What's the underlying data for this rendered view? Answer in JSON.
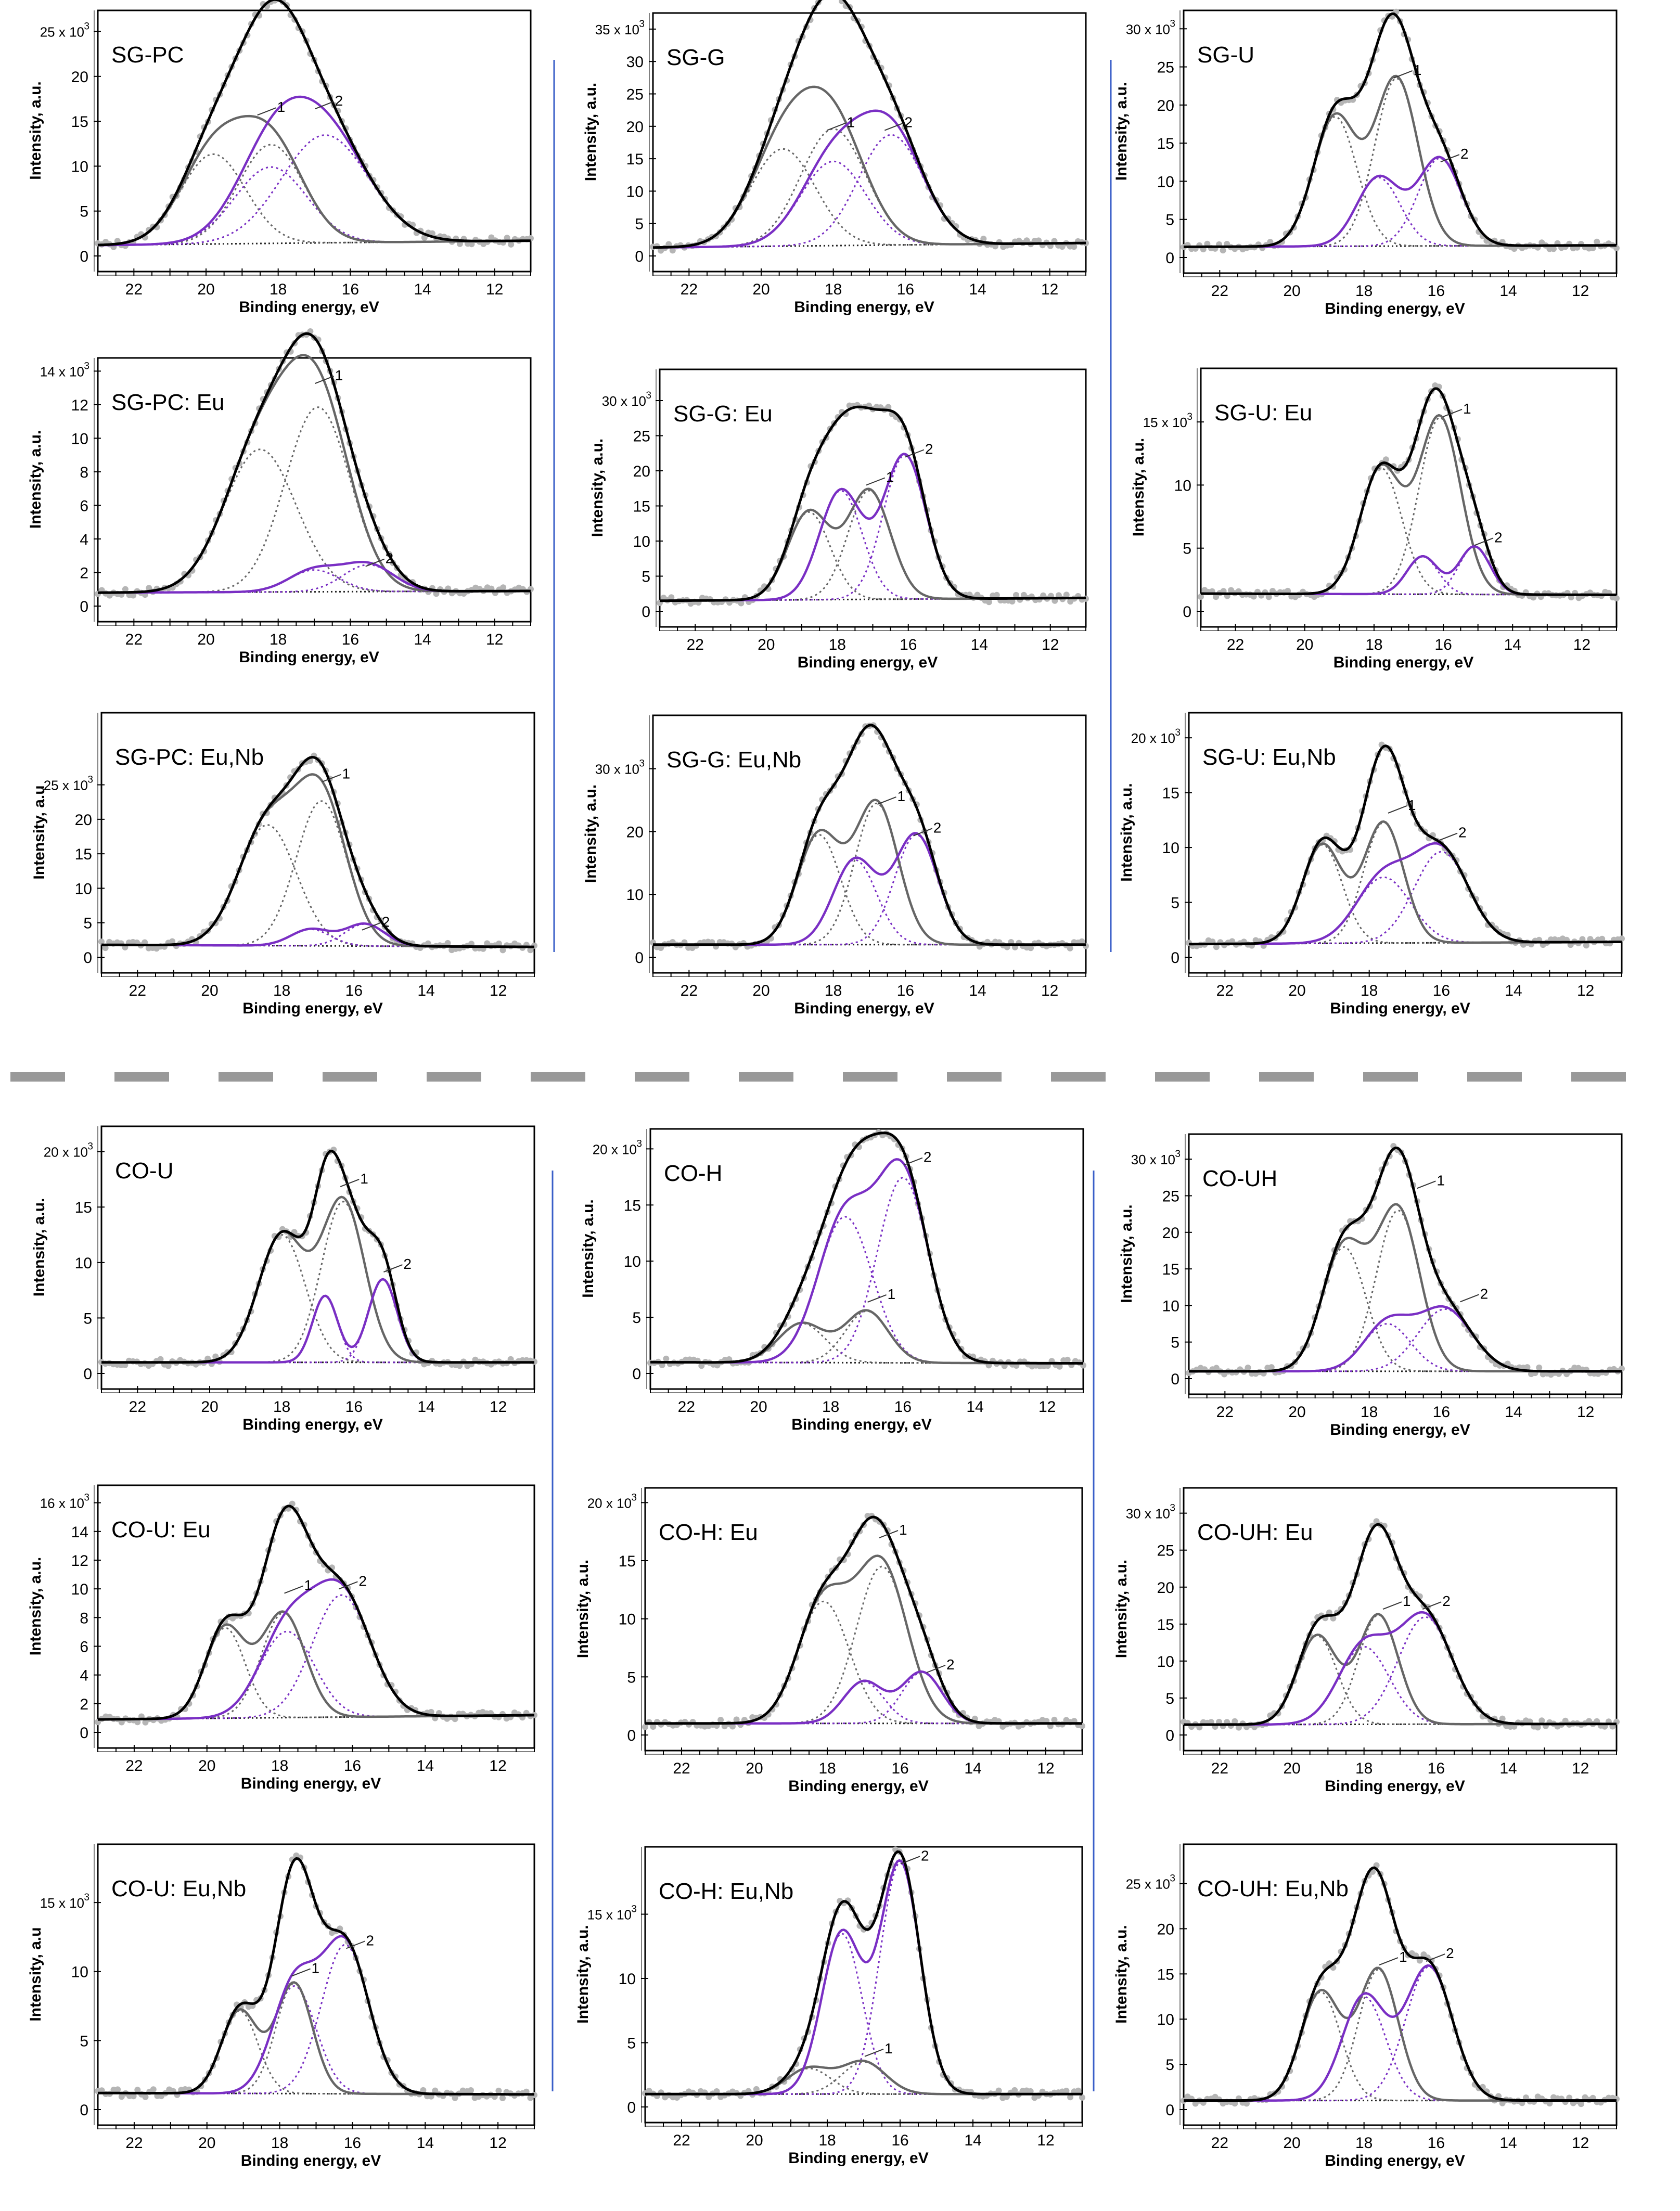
{
  "figure": {
    "colors": {
      "frame": "#000000",
      "envelope": "#000000",
      "peak1": "#666666",
      "peak2": "#7a2fc4",
      "raw": "#b5b5b5",
      "separator": "#999999",
      "divider": "#3a5fc8"
    },
    "shared": {
      "xlabel": "Binding energy, eV",
      "ylabel": "Intensity, a.u.",
      "ylabel_alt": "Intensity, a.u",
      "x_ticks": [
        "22",
        "20",
        "18",
        "16",
        "14",
        "12"
      ],
      "xlim": [
        23,
        11
      ],
      "peak_labels": [
        "1",
        "2"
      ]
    }
  },
  "chart_data": [
    {
      "type": "line",
      "title": "SG-PC",
      "ylabel": "Intensity, a.u.",
      "exp": "25 x 10",
      "ymax": 27,
      "yticks": [
        0,
        5,
        10,
        15,
        20,
        25
      ],
      "ytick_labels": [
        "0",
        "5",
        "10",
        "15",
        "20"
      ],
      "bg": [
        1.2,
        1.7
      ],
      "p1": [
        [
          19.8,
          10,
          0.9
        ],
        [
          18.2,
          11,
          0.9
        ]
      ],
      "p2": [
        [
          18.2,
          8.5,
          1.0
        ],
        [
          16.7,
          12,
          1.2
        ]
      ],
      "lab1": [
        18.0,
        16.5
      ],
      "lab2": [
        16.4,
        17.2
      ]
    },
    {
      "type": "line",
      "title": "SG-G",
      "ylabel": "Intensity, a.u.",
      "exp": "35 x 10",
      "ymax": 37,
      "yticks": [
        0,
        5,
        10,
        15,
        20,
        25,
        30,
        35
      ],
      "ytick_labels": [
        "0",
        "5",
        "10",
        "15",
        "20",
        "25",
        "30"
      ],
      "bg": [
        1.3,
        2.0
      ],
      "p1": [
        [
          19.4,
          15,
          0.9
        ],
        [
          18.0,
          18,
          0.9
        ]
      ],
      "p2": [
        [
          18.0,
          13,
          0.9
        ],
        [
          16.4,
          17,
          0.9
        ]
      ],
      "lab1": [
        17.6,
        20.5
      ],
      "lab2": [
        16.0,
        20.5
      ]
    },
    {
      "type": "line",
      "title": "SG-U",
      "ylabel": "Intensity, a.u.",
      "exp": "30 x 10",
      "ymax": 32,
      "yticks": [
        0,
        5,
        10,
        15,
        20,
        25,
        30
      ],
      "ytick_labels": [
        "0",
        "5",
        "10",
        "15",
        "20",
        "25"
      ],
      "bg": [
        1.4,
        1.6
      ],
      "p1": [
        [
          18.8,
          17,
          0.6
        ],
        [
          17.1,
          22,
          0.6
        ]
      ],
      "p2": [
        [
          17.6,
          9,
          0.6
        ],
        [
          15.9,
          11.5,
          0.6
        ]
      ],
      "lab1": [
        16.6,
        24.5
      ],
      "lab2": [
        15.3,
        13.5
      ]
    },
    {
      "type": "line",
      "title": "SG-PC: Eu",
      "ylabel": "Intensity, a.u.",
      "exp": "14 x 10",
      "ymax": 14.6,
      "yticks": [
        0,
        2,
        4,
        6,
        8,
        10,
        12,
        14
      ],
      "ytick_labels": [
        "0",
        "2",
        "4",
        "6",
        "8",
        "10",
        "12"
      ],
      "bg": [
        0.8,
        0.9
      ],
      "p1": [
        [
          18.5,
          8.5,
          1.0
        ],
        [
          16.9,
          11,
          0.9
        ]
      ],
      "p2": [
        [
          17.0,
          1.3,
          0.7
        ],
        [
          15.5,
          1.6,
          0.7
        ]
      ],
      "lab1": [
        16.4,
        13.7
      ],
      "lab2": [
        15.0,
        2.8
      ]
    },
    {
      "type": "line",
      "title": "SG-G: Eu",
      "ylabel": "Intensity, a.u.",
      "exp": "30 x 10",
      "ymax": 34,
      "yticks": [
        0,
        5,
        10,
        15,
        20,
        25,
        30
      ],
      "ytick_labels": [
        "0",
        "5",
        "10",
        "15",
        "20",
        "25"
      ],
      "bg": [
        1.5,
        1.9
      ],
      "p1": [
        [
          18.8,
          12.5,
          0.6
        ],
        [
          17.1,
          15.5,
          0.6
        ]
      ],
      "p2": [
        [
          17.9,
          15.5,
          0.6
        ],
        [
          16.1,
          20.5,
          0.6
        ]
      ],
      "lab1": [
        16.6,
        19.0
      ],
      "lab2": [
        15.5,
        23.0
      ]
    },
    {
      "type": "line",
      "title": "SG-U: Eu",
      "ylabel": "Intensity, a.u.",
      "exp": "15 x 10",
      "ymax": 19,
      "yticks": [
        0,
        5,
        10,
        15
      ],
      "ytick_labels": [
        "0",
        "5",
        "10"
      ],
      "bg": [
        1.4,
        1.3
      ],
      "p1": [
        [
          17.8,
          10,
          0.6
        ],
        [
          16.1,
          14,
          0.6
        ]
      ],
      "p2": [
        [
          16.6,
          3,
          0.45
        ],
        [
          15.1,
          3.8,
          0.45
        ]
      ],
      "lab1": [
        15.4,
        16.0
      ],
      "lab2": [
        14.5,
        5.8
      ]
    },
    {
      "type": "line",
      "title": "SG-PC: Eu,Nb",
      "ylabel": "Intensity, a.u",
      "exp": "25 x 10",
      "ymax": 35,
      "yticks": [
        0,
        5,
        10,
        15,
        20,
        25
      ],
      "ytick_labels": [
        "0",
        "5",
        "10",
        "15",
        "20"
      ],
      "bg": [
        1.8,
        1.5
      ],
      "p1": [
        [
          18.4,
          17.5,
          0.8
        ],
        [
          16.9,
          21,
          0.7
        ]
      ],
      "p2": [
        [
          17.2,
          2.4,
          0.55
        ],
        [
          15.7,
          3.2,
          0.55
        ]
      ],
      "lab1": [
        16.3,
        26.5
      ],
      "lab2": [
        15.2,
        5.0
      ]
    },
    {
      "type": "line",
      "title": "SG-G: Eu,Nb",
      "ylabel": "Intensity, a.u.",
      "exp": "30 x 10",
      "ymax": 38,
      "yticks": [
        0,
        10,
        20,
        30
      ],
      "ytick_labels": [
        "0",
        "10",
        "20"
      ],
      "bg": [
        2.0,
        2.0
      ],
      "p1": [
        [
          18.4,
          17.5,
          0.6
        ],
        [
          16.8,
          22.5,
          0.6
        ]
      ],
      "p2": [
        [
          17.4,
          13.5,
          0.6
        ],
        [
          15.7,
          17.5,
          0.6
        ]
      ],
      "lab1": [
        16.2,
        25.5
      ],
      "lab2": [
        15.2,
        20.5
      ]
    },
    {
      "type": "line",
      "title": "SG-U: Eu,Nb",
      "ylabel": "Intensity, a.u.",
      "exp": "20 x 10",
      "ymax": 22,
      "yticks": [
        0,
        5,
        10,
        15,
        20
      ],
      "ytick_labels": [
        "0",
        "5",
        "10",
        "15"
      ],
      "bg": [
        1.2,
        1.4
      ],
      "p1": [
        [
          19.3,
          9,
          0.55
        ],
        [
          17.6,
          11,
          0.55
        ]
      ],
      "p2": [
        [
          17.6,
          6,
          0.75
        ],
        [
          16.0,
          8.3,
          0.75
        ]
      ],
      "lab1": [
        16.9,
        13.8
      ],
      "lab2": [
        15.5,
        11.3
      ]
    },
    {
      "type": "line",
      "title": "CO-U",
      "ylabel": "Intensity, a.u.",
      "exp": "20 x 10",
      "ymax": 22,
      "yticks": [
        0,
        5,
        10,
        15,
        20
      ],
      "ytick_labels": [
        "0",
        "5",
        "10",
        "15"
      ],
      "bg": [
        1.0,
        1.0
      ],
      "p1": [
        [
          18.0,
          11.5,
          0.65
        ],
        [
          16.3,
          14.5,
          0.6
        ]
      ],
      "p2": [
        [
          16.8,
          6,
          0.35
        ],
        [
          15.2,
          7.5,
          0.4
        ]
      ],
      "lab1": [
        15.8,
        17.5
      ],
      "lab2": [
        14.6,
        9.8
      ]
    },
    {
      "type": "line",
      "title": "CO-H",
      "ylabel": "Intensity, a.u.",
      "exp": "20 x 10",
      "ymax": 21.5,
      "yticks": [
        0,
        5,
        10,
        15,
        20
      ],
      "ytick_labels": [
        "0",
        "5",
        "10",
        "15"
      ],
      "bg": [
        1.0,
        0.9
      ],
      "p1": [
        [
          18.8,
          3.5,
          0.65
        ],
        [
          17.0,
          4.6,
          0.6
        ]
      ],
      "p2": [
        [
          17.6,
          13,
          0.75
        ],
        [
          16.0,
          16.5,
          0.7
        ]
      ],
      "lab1": [
        16.4,
        7.0
      ],
      "lab2": [
        15.4,
        19.2
      ]
    },
    {
      "type": "line",
      "title": "CO-UH",
      "ylabel": "Intensity, a.u.",
      "exp": "30 x 10",
      "ymax": 33,
      "yticks": [
        0,
        5,
        10,
        15,
        20,
        25,
        30
      ],
      "ytick_labels": [
        "0",
        "5",
        "10",
        "15",
        "20",
        "25"
      ],
      "bg": [
        1.0,
        1.0
      ],
      "p1": [
        [
          18.7,
          17,
          0.6
        ],
        [
          17.2,
          22,
          0.6
        ]
      ],
      "p2": [
        [
          17.5,
          6.5,
          0.65
        ],
        [
          15.9,
          8.5,
          0.75
        ]
      ],
      "lab1": [
        16.1,
        27.0
      ],
      "lab2": [
        14.9,
        11.5
      ]
    },
    {
      "type": "line",
      "title": "CO-U: Eu",
      "ylabel": "Intensity, a.u.",
      "exp": "16 x 10",
      "ymax": 17,
      "yticks": [
        0,
        2,
        4,
        6,
        8,
        10,
        12,
        14,
        16
      ],
      "ytick_labels": [
        "0",
        "2",
        "4",
        "6",
        "8",
        "10",
        "12",
        "14"
      ],
      "bg": [
        0.9,
        1.2
      ],
      "p1": [
        [
          19.5,
          6.3,
          0.55
        ],
        [
          17.9,
          7.3,
          0.6
        ]
      ],
      "p2": [
        [
          17.8,
          6,
          0.75
        ],
        [
          16.3,
          8.5,
          0.8
        ]
      ],
      "lab1": [
        17.3,
        10.2
      ],
      "lab2": [
        15.8,
        10.5
      ]
    },
    {
      "type": "line",
      "title": "CO-H: Eu",
      "ylabel": "Intensity, a.u.",
      "exp": "20 x 10",
      "ymax": 21,
      "yticks": [
        0,
        5,
        10,
        15,
        20
      ],
      "ytick_labels": [
        "0",
        "5",
        "10",
        "15"
      ],
      "bg": [
        1.0,
        1.0
      ],
      "p1": [
        [
          18.1,
          10.5,
          0.7
        ],
        [
          16.5,
          13.5,
          0.7
        ]
      ],
      "p2": [
        [
          17.0,
          3.6,
          0.55
        ],
        [
          15.4,
          4.4,
          0.55
        ]
      ],
      "lab1": [
        16.0,
        17.6
      ],
      "lab2": [
        14.7,
        6.0
      ]
    },
    {
      "type": "line",
      "title": "CO-UH: Eu",
      "ylabel": "Intensity, a.u.",
      "exp": "30 x 10",
      "ymax": 33,
      "yticks": [
        0,
        5,
        10,
        15,
        20,
        25,
        30
      ],
      "ytick_labels": [
        "0",
        "5",
        "10",
        "15",
        "20",
        "25"
      ],
      "bg": [
        1.4,
        1.5
      ],
      "p1": [
        [
          19.3,
          12,
          0.55
        ],
        [
          17.6,
          14.8,
          0.55
        ]
      ],
      "p2": [
        [
          18.0,
          10.5,
          0.7
        ],
        [
          16.3,
          14.5,
          0.75
        ]
      ],
      "lab1": [
        16.9,
        18.0
      ],
      "lab2": [
        15.8,
        18.0
      ]
    },
    {
      "type": "line",
      "title": "CO-U: Eu,Nb",
      "ylabel": "Intensity, a.u",
      "exp": "15 x 10",
      "ymax": 19,
      "yticks": [
        0,
        5,
        10,
        15
      ],
      "ytick_labels": [
        "0",
        "5",
        "10"
      ],
      "bg": [
        1.2,
        1.1
      ],
      "p1": [
        [
          19.1,
          6,
          0.5
        ],
        [
          17.6,
          8,
          0.5
        ]
      ],
      "p2": [
        [
          17.6,
          7.8,
          0.6
        ],
        [
          16.2,
          10.8,
          0.65
        ]
      ],
      "lab1": [
        17.1,
        10.2
      ],
      "lab2": [
        15.6,
        12.2
      ]
    },
    {
      "type": "line",
      "title": "CO-H: Eu,Nb",
      "ylabel": "Intensity, a.u.",
      "exp": "15 x 10",
      "ymax": 20,
      "yticks": [
        0,
        5,
        10,
        15
      ],
      "ytick_labels": [
        "0",
        "5",
        "10"
      ],
      "bg": [
        1.0,
        1.0
      ],
      "p1": [
        [
          18.5,
          2,
          0.6
        ],
        [
          17.0,
          2.5,
          0.6
        ]
      ],
      "p2": [
        [
          17.6,
          12.5,
          0.55
        ],
        [
          16.0,
          18,
          0.55
        ]
      ],
      "lab1": [
        16.4,
        4.5
      ],
      "lab2": [
        15.4,
        19.5
      ]
    },
    {
      "type": "line",
      "title": "CO-UH: Eu,Nb",
      "ylabel": "Intensity, a.u.",
      "exp": "25 x 10",
      "ymax": 29,
      "yticks": [
        0,
        5,
        10,
        15,
        20,
        25
      ],
      "ytick_labels": [
        "0",
        "5",
        "10",
        "15",
        "20"
      ],
      "bg": [
        1.0,
        1.0
      ],
      "p1": [
        [
          19.2,
          12,
          0.55
        ],
        [
          17.6,
          14.5,
          0.55
        ]
      ],
      "p2": [
        [
          18.0,
          11.5,
          0.6
        ],
        [
          16.2,
          14.8,
          0.65
        ]
      ],
      "lab1": [
        17.0,
        16.8
      ],
      "lab2": [
        15.7,
        17.2
      ]
    }
  ]
}
